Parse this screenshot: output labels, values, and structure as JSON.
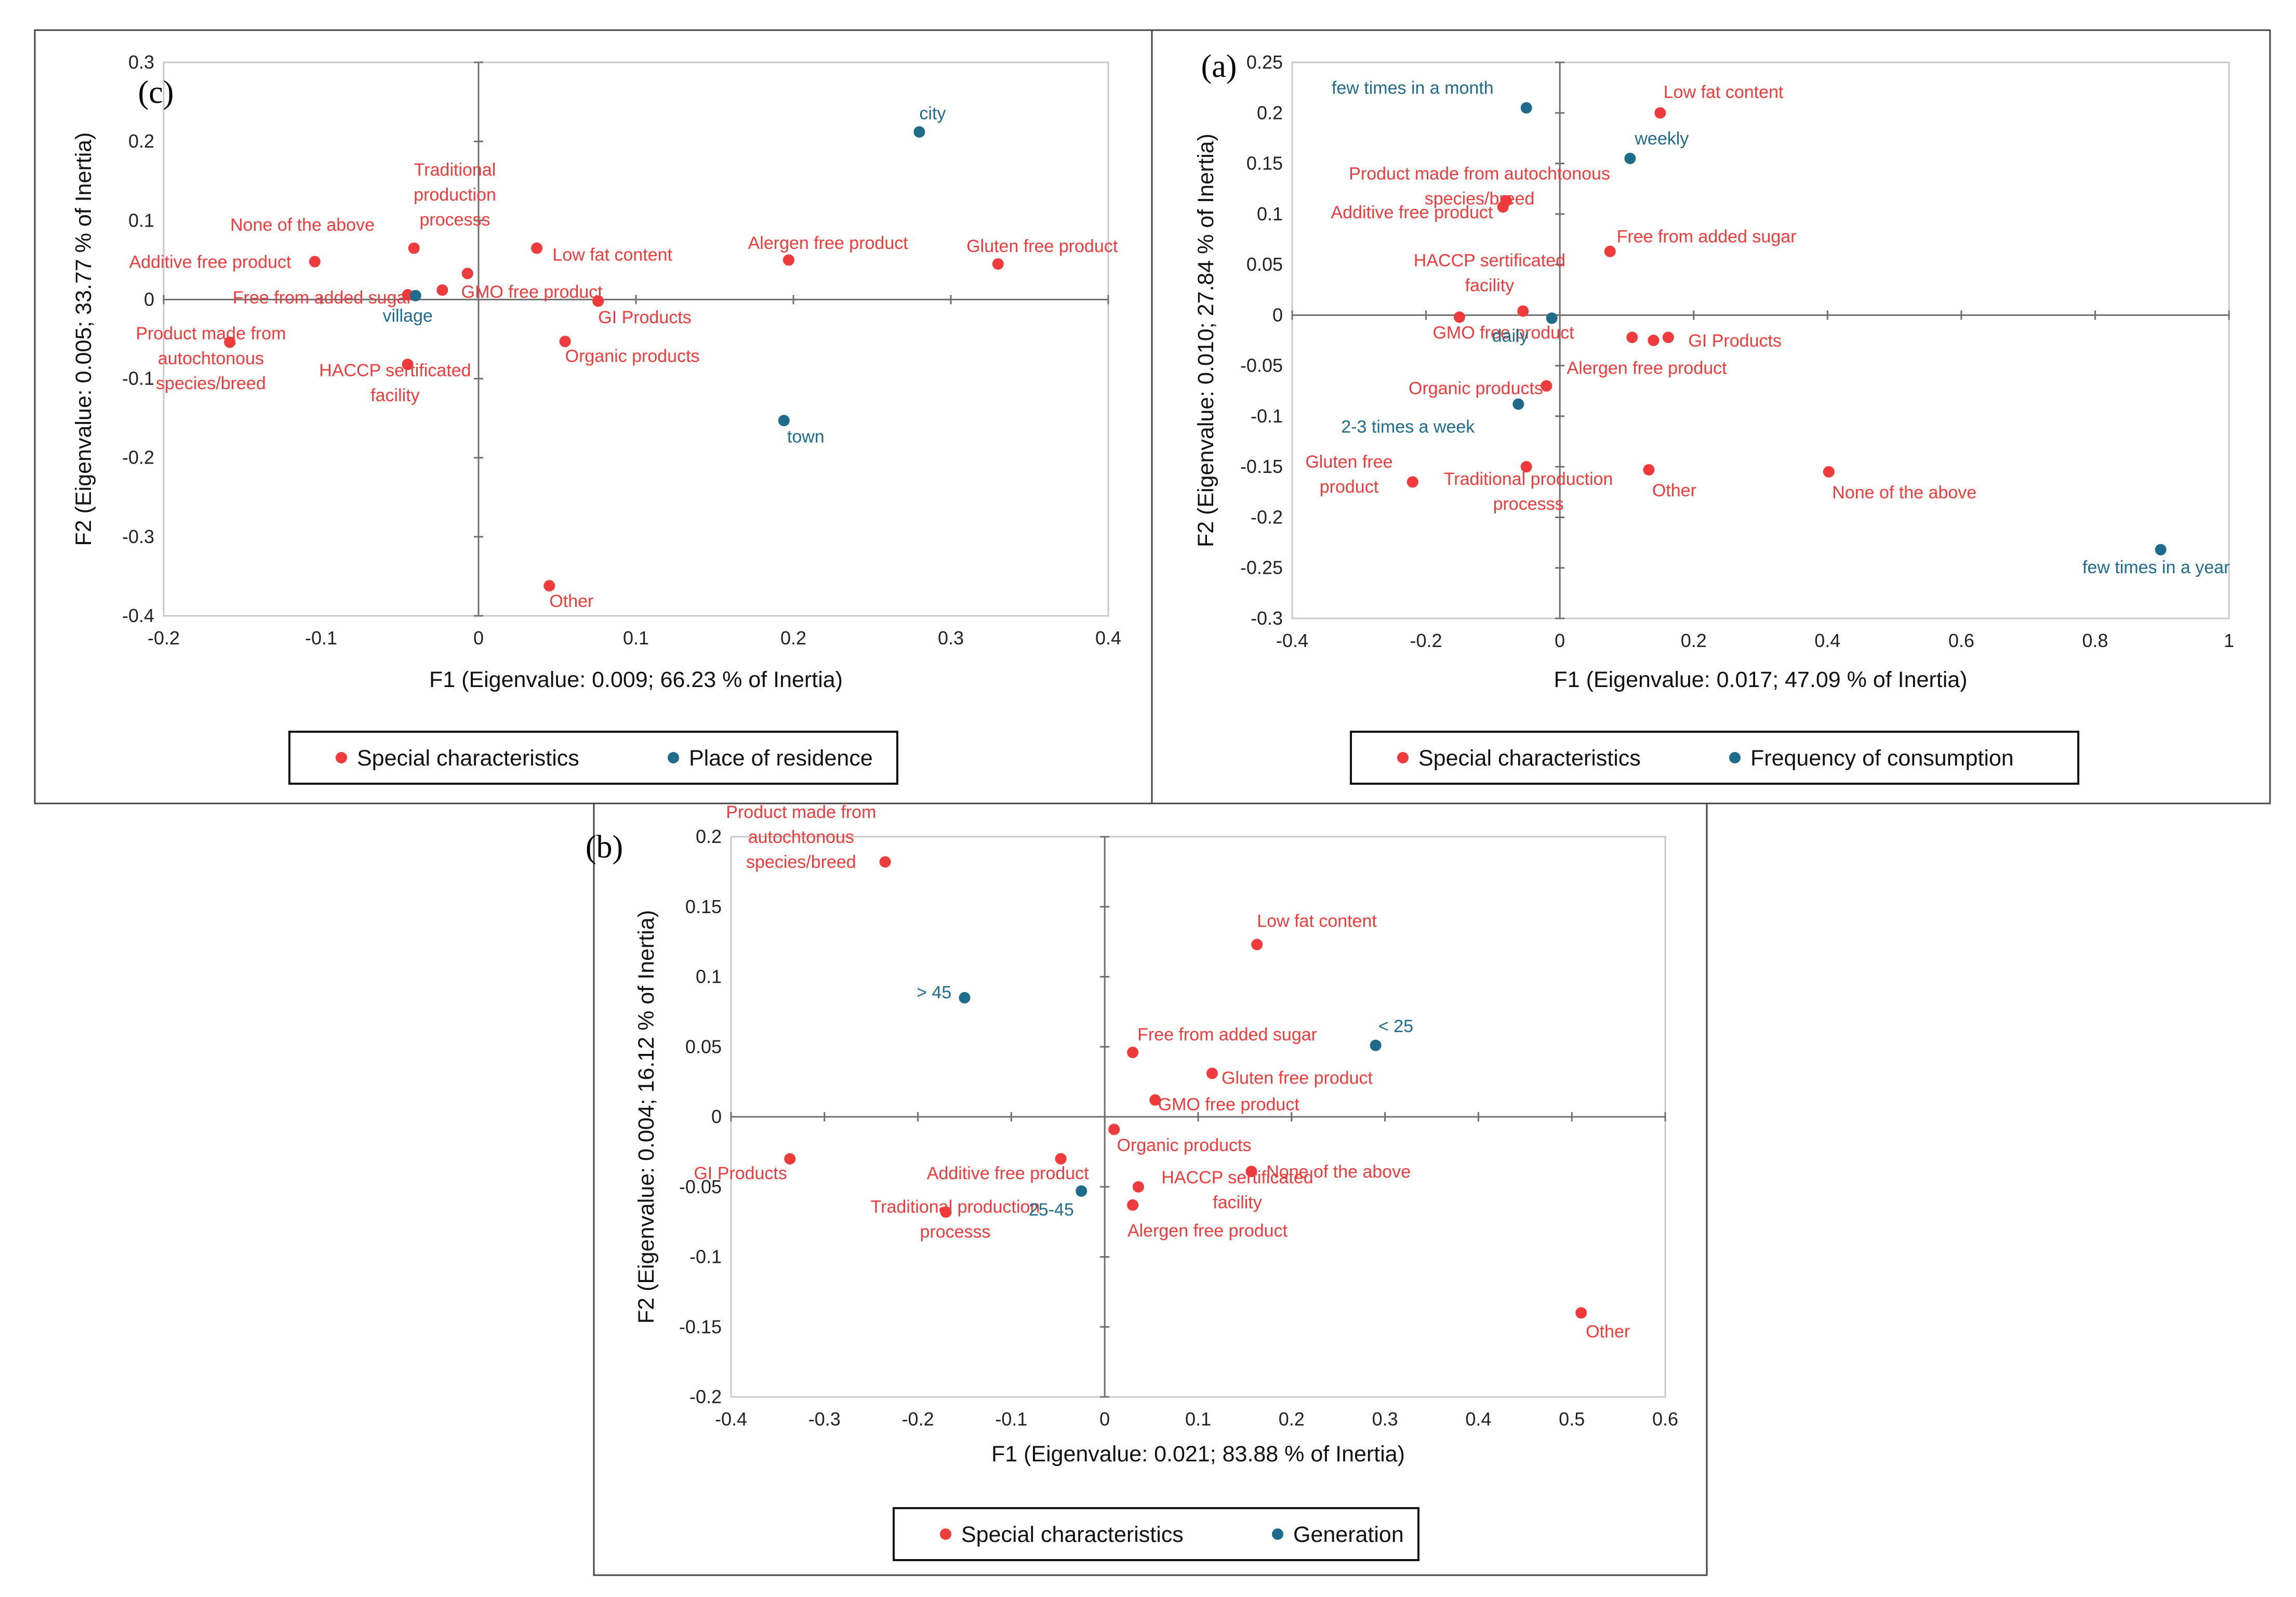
{
  "colors": {
    "special": "#ef3b3b",
    "group": "#1f6b8c"
  },
  "chart_data": [
    {
      "type": "scatter",
      "panel_label": "(c)",
      "xlabel": "F1 (Eigenvalue: 0.009; 66.23 % of Inertia)",
      "ylabel": "F2 (Eigenvalue: 0.005; 33.77 % of Inertia)",
      "xlim": [
        -0.2,
        0.4
      ],
      "ylim": [
        -0.4,
        0.3
      ],
      "xticks": [
        -0.2,
        -0.1,
        0,
        0.1,
        0.2,
        0.3,
        0.4
      ],
      "yticks": [
        -0.4,
        -0.3,
        -0.2,
        -0.1,
        0,
        0.1,
        0.2,
        0.3
      ],
      "xtick_labels": [
        "-0.2",
        "-0.1",
        "0",
        "0.1",
        "0.2",
        "0.3",
        "0.4"
      ],
      "ytick_labels": [
        "-0.4",
        "-0.3",
        "-0.2",
        "-0.1",
        "0",
        "0.1",
        "0.2",
        "0.3"
      ],
      "legend": [
        "Special characteristics",
        "Place of residence"
      ],
      "series": [
        {
          "name": "Special characteristics",
          "points": [
            {
              "x": -0.104,
              "y": 0.048,
              "label": [
                "Additive free product"
              ],
              "anchor": "end",
              "dx": -0.015,
              "dy": 0.0
            },
            {
              "x": -0.041,
              "y": 0.065,
              "label": [
                "None of the above"
              ],
              "anchor": "end",
              "dx": -0.025,
              "dy": 0.03
            },
            {
              "x": -0.007,
              "y": 0.033,
              "label": [
                "Traditional",
                "production",
                "processs"
              ],
              "anchor": "middle",
              "dx": -0.008,
              "dy": 0.1
            },
            {
              "x": 0.037,
              "y": 0.065,
              "label": [
                "Low fat content"
              ],
              "anchor": "start",
              "dx": 0.01,
              "dy": -0.008
            },
            {
              "x": -0.045,
              "y": 0.006,
              "label": [
                "Free from added sugar"
              ],
              "anchor": "end",
              "dx": 0.003,
              "dy": -0.003
            },
            {
              "x": -0.023,
              "y": 0.012,
              "label": [
                "GMO free product"
              ],
              "anchor": "start",
              "dx": 0.012,
              "dy": -0.002
            },
            {
              "x": 0.076,
              "y": -0.002,
              "label": [
                "GI Products"
              ],
              "anchor": "start",
              "dx": 0.0,
              "dy": -0.02
            },
            {
              "x": -0.158,
              "y": -0.054,
              "label": [
                "Product made from",
                "autochtonous",
                "species/breed"
              ],
              "anchor": "middle",
              "dx": -0.012,
              "dy": -0.02
            },
            {
              "x": -0.045,
              "y": -0.082,
              "label": [
                "HACCP sertificated",
                "facility"
              ],
              "anchor": "middle",
              "dx": -0.008,
              "dy": -0.023
            },
            {
              "x": 0.055,
              "y": -0.053,
              "label": [
                "Organic products"
              ],
              "anchor": "start",
              "dx": 0.0,
              "dy": -0.018
            },
            {
              "x": 0.197,
              "y": 0.05,
              "label": [
                "Alergen free product"
              ],
              "anchor": "middle",
              "dx": 0.025,
              "dy": 0.022
            },
            {
              "x": 0.33,
              "y": 0.045,
              "label": [
                "Gluten free product"
              ],
              "anchor": "middle",
              "dx": 0.028,
              "dy": 0.023
            },
            {
              "x": 0.045,
              "y": -0.362,
              "label": [
                "Other"
              ],
              "anchor": "start",
              "dx": 0.0,
              "dy": -0.019
            }
          ]
        },
        {
          "name": "Place of residence",
          "points": [
            {
              "x": 0.28,
              "y": 0.212,
              "label": [
                "city"
              ],
              "anchor": "start",
              "dx": 0.0,
              "dy": 0.024
            },
            {
              "x": -0.04,
              "y": 0.005,
              "label": [
                "village"
              ],
              "anchor": "middle",
              "dx": -0.005,
              "dy": -0.025
            },
            {
              "x": 0.194,
              "y": -0.153,
              "label": [
                "town"
              ],
              "anchor": "start",
              "dx": 0.002,
              "dy": -0.02
            }
          ]
        }
      ]
    },
    {
      "type": "scatter",
      "panel_label": "(a)",
      "xlabel": "F1 (Eigenvalue: 0.017; 47.09 % of Inertia)",
      "ylabel": "F2 (Eigenvalue: 0.010; 27.84 % of Inertia)",
      "xlim": [
        -0.4,
        1.0
      ],
      "ylim": [
        -0.3,
        0.25
      ],
      "xticks": [
        -0.4,
        -0.2,
        0,
        0.2,
        0.4,
        0.6,
        0.8,
        1.0
      ],
      "yticks": [
        -0.3,
        -0.25,
        -0.2,
        -0.15,
        -0.1,
        -0.05,
        0,
        0.05,
        0.1,
        0.15,
        0.2,
        0.25
      ],
      "xtick_labels": [
        "-0.4",
        "-0.2",
        "0",
        "0.2",
        "0.4",
        "0.6",
        "0.8",
        "1"
      ],
      "ytick_labels": [
        "-0.3",
        "-0.25",
        "-0.2",
        "-0.15",
        "-0.1",
        "-0.05",
        "0",
        "0.05",
        "0.1",
        "0.15",
        "0.2",
        "0.25"
      ],
      "legend": [
        "Special characteristics",
        "Frequency of consumption"
      ],
      "series": [
        {
          "name": "Special characteristics",
          "points": [
            {
              "x": 0.15,
              "y": 0.2,
              "label": [
                "Low fat content"
              ],
              "anchor": "start",
              "dx": 0.005,
              "dy": 0.021
            },
            {
              "x": -0.08,
              "y": 0.113,
              "label": [
                "Product made from autochtonous",
                "species/breed"
              ],
              "anchor": "middle",
              "dx": -0.04,
              "dy": 0.015
            },
            {
              "x": -0.085,
              "y": 0.107,
              "label": [
                "Additive free product"
              ],
              "anchor": "end",
              "dx": -0.015,
              "dy": -0.005
            },
            {
              "x": 0.075,
              "y": 0.063,
              "label": [
                "Free from added sugar"
              ],
              "anchor": "start",
              "dx": 0.01,
              "dy": 0.015
            },
            {
              "x": -0.055,
              "y": 0.004,
              "label": [
                "HACCP sertificated",
                "facility"
              ],
              "anchor": "middle",
              "dx": -0.05,
              "dy": 0.038
            },
            {
              "x": -0.15,
              "y": -0.002,
              "label": [
                "GMO free product"
              ],
              "anchor": "start",
              "dx": -0.04,
              "dy": -0.015
            },
            {
              "x": 0.108,
              "y": -0.022,
              "label": [
                ""
              ],
              "anchor": "start",
              "dx": 0.0,
              "dy": 0.0
            },
            {
              "x": 0.162,
              "y": -0.022,
              "label": [
                "GI Products"
              ],
              "anchor": "start",
              "dx": 0.03,
              "dy": -0.003
            },
            {
              "x": -0.02,
              "y": -0.07,
              "label": [
                "Organic products"
              ],
              "anchor": "end",
              "dx": -0.005,
              "dy": -0.002
            },
            {
              "x": 0.14,
              "y": -0.025,
              "label": [
                "Alergen free product"
              ],
              "anchor": "middle",
              "dx": -0.01,
              "dy": -0.027
            },
            {
              "x": -0.22,
              "y": -0.165,
              "label": [
                "Gluten free",
                "product"
              ],
              "anchor": "middle",
              "dx": -0.095,
              "dy": 0.008
            },
            {
              "x": -0.05,
              "y": -0.15,
              "label": [
                "Traditional production",
                "processs"
              ],
              "anchor": "middle",
              "dx": 0.003,
              "dy": -0.024
            },
            {
              "x": 0.133,
              "y": -0.153,
              "label": [
                "Other"
              ],
              "anchor": "start",
              "dx": 0.005,
              "dy": -0.02
            },
            {
              "x": 0.402,
              "y": -0.155,
              "label": [
                "None of the above"
              ],
              "anchor": "start",
              "dx": 0.005,
              "dy": -0.02
            }
          ]
        },
        {
          "name": "Frequency of consumption",
          "points": [
            {
              "x": -0.05,
              "y": 0.205,
              "label": [
                "few times in a month"
              ],
              "anchor": "middle",
              "dx": -0.17,
              "dy": 0.02
            },
            {
              "x": 0.105,
              "y": 0.155,
              "label": [
                "weekly"
              ],
              "anchor": "start",
              "dx": 0.007,
              "dy": 0.02
            },
            {
              "x": -0.012,
              "y": -0.003,
              "label": [
                "daily"
              ],
              "anchor": "end",
              "dx": -0.035,
              "dy": -0.017
            },
            {
              "x": -0.062,
              "y": -0.088,
              "label": [
                "2-3 times a week"
              ],
              "anchor": "middle",
              "dx": -0.165,
              "dy": -0.022
            },
            {
              "x": 0.898,
              "y": -0.232,
              "label": [
                "few times in a year"
              ],
              "anchor": "middle",
              "dx": -0.007,
              "dy": -0.017
            }
          ]
        }
      ]
    },
    {
      "type": "scatter",
      "panel_label": "(b)",
      "xlabel": "F1 (Eigenvalue: 0.021; 83.88 % of Inertia)",
      "ylabel": "F2 (Eigenvalue: 0.004; 16.12 % of Inertia)",
      "xlim": [
        -0.4,
        0.6
      ],
      "ylim": [
        -0.2,
        0.2
      ],
      "xticks": [
        -0.4,
        -0.3,
        -0.2,
        -0.1,
        0,
        0.1,
        0.2,
        0.3,
        0.4,
        0.5,
        0.6
      ],
      "yticks": [
        -0.2,
        -0.15,
        -0.1,
        -0.05,
        0,
        0.05,
        0.1,
        0.15,
        0.2
      ],
      "xtick_labels": [
        "-0.4",
        "-0.3",
        "-0.2",
        "-0.1",
        "0",
        "0.1",
        "0.2",
        "0.3",
        "0.4",
        "0.5",
        "0.6"
      ],
      "ytick_labels": [
        "-0.2",
        "-0.15",
        "-0.1",
        "-0.05",
        "0",
        "0.05",
        "0.1",
        "0.15",
        "0.2"
      ],
      "legend": [
        "Special characteristics",
        "Generation"
      ],
      "series": [
        {
          "name": "Special characteristics",
          "points": [
            {
              "x": -0.235,
              "y": 0.182,
              "label": [
                "Product made from",
                "autochtonous",
                "species/breed"
              ],
              "anchor": "middle",
              "dx": -0.09,
              "dy": 0.018
            },
            {
              "x": 0.163,
              "y": 0.123,
              "label": [
                "Low fat content"
              ],
              "anchor": "start",
              "dx": 0.0,
              "dy": 0.017
            },
            {
              "x": 0.03,
              "y": 0.046,
              "label": [
                "Free from added sugar"
              ],
              "anchor": "start",
              "dx": 0.005,
              "dy": 0.013
            },
            {
              "x": 0.115,
              "y": 0.031,
              "label": [
                "Gluten free product"
              ],
              "anchor": "start",
              "dx": 0.01,
              "dy": -0.003
            },
            {
              "x": 0.054,
              "y": 0.012,
              "label": [
                "GMO free product"
              ],
              "anchor": "start",
              "dx": 0.003,
              "dy": -0.003
            },
            {
              "x": 0.01,
              "y": -0.009,
              "label": [
                "Organic products"
              ],
              "anchor": "start",
              "dx": 0.003,
              "dy": -0.011
            },
            {
              "x": -0.337,
              "y": -0.03,
              "label": [
                "GI Products"
              ],
              "anchor": "end",
              "dx": -0.003,
              "dy": -0.01
            },
            {
              "x": -0.047,
              "y": -0.03,
              "label": [
                "Additive free product"
              ],
              "anchor": "end",
              "dx": 0.03,
              "dy": -0.01
            },
            {
              "x": 0.157,
              "y": -0.039,
              "label": [
                "None of the above"
              ],
              "anchor": "start",
              "dx": 0.016,
              "dy": 0.0
            },
            {
              "x": 0.036,
              "y": -0.05,
              "label": [
                "HACCP sertificated",
                "facility"
              ],
              "anchor": "middle",
              "dx": 0.106,
              "dy": -0.002
            },
            {
              "x": -0.17,
              "y": -0.068,
              "label": [
                "Traditional production",
                "processs"
              ],
              "anchor": "middle",
              "dx": 0.01,
              "dy": -0.005
            },
            {
              "x": 0.03,
              "y": -0.063,
              "label": [
                "Alergen free product"
              ],
              "anchor": "middle",
              "dx": 0.08,
              "dy": -0.018
            },
            {
              "x": 0.51,
              "y": -0.14,
              "label": [
                "Other"
              ],
              "anchor": "start",
              "dx": 0.005,
              "dy": -0.013
            }
          ]
        },
        {
          "name": "Generation",
          "points": [
            {
              "x": -0.15,
              "y": 0.085,
              "label": [
                "> 45"
              ],
              "anchor": "end",
              "dx": -0.014,
              "dy": 0.004
            },
            {
              "x": 0.29,
              "y": 0.051,
              "label": [
                "< 25"
              ],
              "anchor": "start",
              "dx": 0.003,
              "dy": 0.014
            },
            {
              "x": -0.025,
              "y": -0.053,
              "label": [
                "25-45"
              ],
              "anchor": "end",
              "dx": -0.008,
              "dy": -0.013
            }
          ]
        }
      ]
    }
  ]
}
